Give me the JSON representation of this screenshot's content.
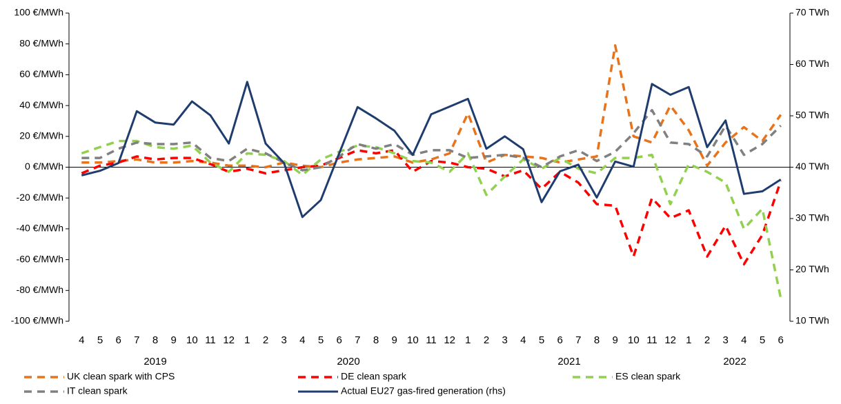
{
  "chart_data": {
    "type": "line",
    "categories": [
      "4",
      "5",
      "6",
      "7",
      "8",
      "9",
      "10",
      "11",
      "12",
      "1",
      "2",
      "3",
      "4",
      "5",
      "6",
      "7",
      "8",
      "9",
      "10",
      "11",
      "12",
      "1",
      "2",
      "3",
      "4",
      "5",
      "6",
      "7",
      "8",
      "9",
      "10",
      "11",
      "12",
      "1",
      "2",
      "3",
      "4",
      "5",
      "6"
    ],
    "category_groups": [
      "2019",
      "2020",
      "2021",
      "2022"
    ],
    "series": [
      {
        "name": "UK clean spark with CPS",
        "color": "#e8731a",
        "dashed": true,
        "values": [
          3,
          3,
          4,
          5,
          3,
          3,
          4,
          3,
          1,
          1,
          0,
          3,
          1,
          0,
          3,
          5,
          6,
          7,
          3,
          5,
          9,
          35,
          3,
          8,
          7,
          6,
          3,
          5,
          7,
          79,
          20,
          16,
          40,
          24,
          1,
          16,
          26,
          17,
          34
        ]
      },
      {
        "name": "DE clean spark",
        "color": "#ff0000",
        "dashed": true,
        "values": [
          -4,
          1,
          3,
          7,
          5,
          6,
          6,
          2,
          -3,
          -1,
          -4,
          -2,
          0,
          1,
          6,
          11,
          9,
          11,
          -3,
          4,
          3,
          0,
          -1,
          -6,
          -2,
          -14,
          -3,
          -10,
          -24,
          -25,
          -58,
          -20,
          -33,
          -28,
          -58,
          -38,
          -63,
          -44,
          -9
        ]
      },
      {
        "name": "ES clean spark",
        "color": "#92d050",
        "dashed": true,
        "values": [
          9,
          13,
          17,
          17,
          13,
          12,
          14,
          3,
          -3,
          9,
          8,
          4,
          -5,
          5,
          10,
          14,
          13,
          9,
          4,
          3,
          -3,
          9,
          -18,
          -6,
          5,
          -1,
          6,
          -1,
          -4,
          6,
          6,
          8,
          -24,
          2,
          -3,
          -10,
          -40,
          -27,
          -85
        ]
      },
      {
        "name": "IT clean spark",
        "color": "#808080",
        "dashed": true,
        "values": [
          6,
          6,
          12,
          16,
          15,
          15,
          16,
          6,
          4,
          12,
          9,
          3,
          -2,
          0,
          7,
          15,
          12,
          15,
          8,
          11,
          11,
          6,
          7,
          8,
          6,
          0,
          7,
          11,
          4,
          10,
          22,
          37,
          16,
          15,
          7,
          27,
          8,
          15,
          27
        ]
      },
      {
        "name": "Actual EU27 gas-fired generation (rhs)",
        "color": "#1f3c6e",
        "dashed": false,
        "axis": "y2",
        "values": [
          38.4,
          39.3,
          40.8,
          50.9,
          48.7,
          48.3,
          52.8,
          50.1,
          44.6,
          56.6,
          44.6,
          40.8,
          30.3,
          33.6,
          42.7,
          51.7,
          49.5,
          47.1,
          42.4,
          50.3,
          51.8,
          53.3,
          43.6,
          46.0,
          43.5,
          33.2,
          39.2,
          40.5,
          34.1,
          41.1,
          40.1,
          56.2,
          54.1,
          55.6,
          43.9,
          49.1,
          34.8,
          35.3,
          37.6
        ]
      }
    ],
    "ylim": [
      -100,
      100
    ],
    "yticks": [
      {
        "value": -100,
        "label": "-100 €/MWh"
      },
      {
        "value": -80,
        "label": "-80 €/MWh"
      },
      {
        "value": -60,
        "label": "-60 €/MWh"
      },
      {
        "value": -40,
        "label": "-40 €/MWh"
      },
      {
        "value": -20,
        "label": "-20 €/MWh"
      },
      {
        "value": 0,
        "label": "0 €/MWh"
      },
      {
        "value": 20,
        "label": "20 €/MWh"
      },
      {
        "value": 40,
        "label": "40 €/MWh"
      },
      {
        "value": 60,
        "label": "60 €/MWh"
      },
      {
        "value": 80,
        "label": "80 €/MWh"
      },
      {
        "value": 100,
        "label": "100 €/MWh"
      }
    ],
    "y2lim": [
      10,
      70
    ],
    "y2ticks": [
      {
        "value": 10,
        "label": "10 TWh"
      },
      {
        "value": 20,
        "label": "20 TWh"
      },
      {
        "value": 30,
        "label": "30 TWh"
      },
      {
        "value": 40,
        "label": "40 TWh"
      },
      {
        "value": 50,
        "label": "50 TWh"
      },
      {
        "value": 60,
        "label": "60 TWh"
      },
      {
        "value": 70,
        "label": "70 TWh"
      }
    ],
    "grid": false,
    "legend": "bottom"
  }
}
